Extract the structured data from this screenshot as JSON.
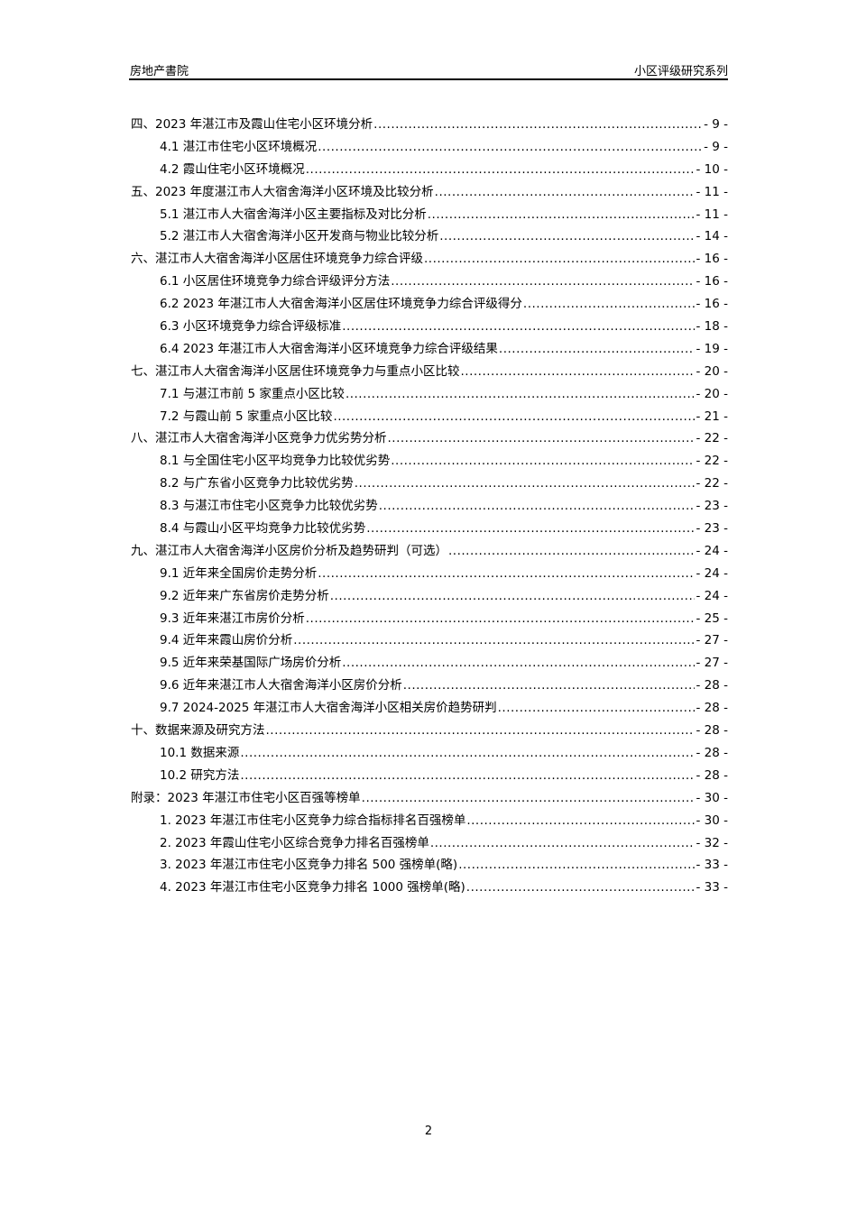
{
  "header": {
    "left": "房地产書院",
    "right": "小区评级研究系列"
  },
  "toc": [
    {
      "level": 1,
      "title": "四、2023 年湛江市及霞山住宅小区环境分析",
      "page": "- 9 -"
    },
    {
      "level": 2,
      "title": "4.1 湛江市住宅小区环境概况",
      "page": "- 9 -"
    },
    {
      "level": 2,
      "title": "4.2 霞山住宅小区环境概况",
      "page": "- 10 -"
    },
    {
      "level": 1,
      "title": "五、2023 年度湛江市人大宿舍海洋小区环境及比较分析",
      "page": "- 11 -"
    },
    {
      "level": 2,
      "title": "5.1 湛江市人大宿舍海洋小区主要指标及对比分析",
      "page": "- 11 -"
    },
    {
      "level": 2,
      "title": "5.2 湛江市人大宿舍海洋小区开发商与物业比较分析",
      "page": "- 14 -"
    },
    {
      "level": 1,
      "title": "六、湛江市人大宿舍海洋小区居住环境竞争力综合评级",
      "page": "- 16 -"
    },
    {
      "level": 2,
      "title": "6.1 小区居住环境竞争力综合评级评分方法",
      "page": "- 16 -"
    },
    {
      "level": 2,
      "title": "6.2 2023 年湛江市人大宿舍海洋小区居住环境竞争力综合评级得分",
      "page": "- 16 -"
    },
    {
      "level": 2,
      "title": "6.3 小区环境竞争力综合评级标准",
      "page": "- 18 -"
    },
    {
      "level": 2,
      "title": "6.4 2023 年湛江市人大宿舍海洋小区环境竞争力综合评级结果",
      "page": "- 19 -"
    },
    {
      "level": 1,
      "title": "七、湛江市人大宿舍海洋小区居住环境竞争力与重点小区比较",
      "page": "- 20 -"
    },
    {
      "level": 2,
      "title": "7.1 与湛江市前 5 家重点小区比较",
      "page": "- 20 -"
    },
    {
      "level": 2,
      "title": "7.2 与霞山前 5 家重点小区比较",
      "page": "- 21 -"
    },
    {
      "level": 1,
      "title": "八、湛江市人大宿舍海洋小区竞争力优劣势分析",
      "page": "- 22 -"
    },
    {
      "level": 2,
      "title": "8.1 与全国住宅小区平均竞争力比较优劣势",
      "page": "- 22 -"
    },
    {
      "level": 2,
      "title": "8.2 与广东省小区竞争力比较优劣势",
      "page": "- 22 -"
    },
    {
      "level": 2,
      "title": "8.3 与湛江市住宅小区竞争力比较优劣势",
      "page": "- 23 -"
    },
    {
      "level": 2,
      "title": "8.4 与霞山小区平均竞争力比较优劣势",
      "page": "- 23 -"
    },
    {
      "level": 1,
      "title": "九、湛江市人大宿舍海洋小区房价分析及趋势研判（可选）",
      "page": "- 24 -"
    },
    {
      "level": 2,
      "title": "9.1 近年来全国房价走势分析",
      "page": "- 24 -"
    },
    {
      "level": 2,
      "title": "9.2 近年来广东省房价走势分析",
      "page": "- 24 -"
    },
    {
      "level": 2,
      "title": "9.3 近年来湛江市房价分析",
      "page": "- 25 -"
    },
    {
      "level": 2,
      "title": "9.4 近年来霞山房价分析",
      "page": "- 27 -"
    },
    {
      "level": 2,
      "title": "9.5 近年来荣基国际广场房价分析",
      "page": "- 27 -"
    },
    {
      "level": 2,
      "title": "9.6 近年来湛江市人大宿舍海洋小区房价分析",
      "page": "- 28 -"
    },
    {
      "level": 2,
      "title": "9.7 2024-2025 年湛江市人大宿舍海洋小区相关房价趋势研判",
      "page": "- 28 -"
    },
    {
      "level": 1,
      "title": "十、数据来源及研究方法",
      "page": "- 28 -"
    },
    {
      "level": 2,
      "title": "10.1 数据来源",
      "page": "- 28 -"
    },
    {
      "level": 2,
      "title": "10.2 研究方法",
      "page": "- 28 -"
    },
    {
      "level": 1,
      "title": "附录：2023 年湛江市住宅小区百强等榜单",
      "page": "- 30 -"
    },
    {
      "level": 2,
      "title": "1.  2023 年湛江市住宅小区竞争力综合指标排名百强榜单",
      "page": "- 30 -"
    },
    {
      "level": 2,
      "title": "2.  2023 年霞山住宅小区综合竞争力排名百强榜单",
      "page": "- 32 -"
    },
    {
      "level": 2,
      "title": "3.  2023 年湛江市住宅小区竞争力排名 500 强榜单(略)",
      "page": "- 33 -"
    },
    {
      "level": 2,
      "title": "4.  2023 年湛江市住宅小区竞争力排名 1000 强榜单(略)",
      "page": "- 33 -"
    }
  ],
  "footer": {
    "page_number": "2"
  }
}
